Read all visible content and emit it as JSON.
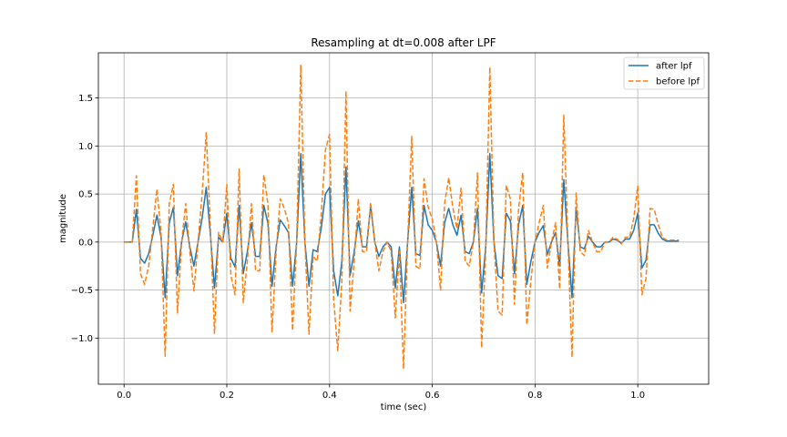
{
  "chart_data": {
    "type": "line",
    "title": "Resampling at dt=0.008 after LPF",
    "xlabel": "time (sec)",
    "ylabel": "magnitude",
    "xlim": [
      -0.05,
      1.138
    ],
    "ylim": [
      -1.48,
      1.97
    ],
    "xticks": [
      0.0,
      0.2,
      0.4,
      0.6,
      0.8,
      1.0
    ],
    "xtick_labels": [
      "0.0",
      "0.2",
      "0.4",
      "0.6",
      "0.8",
      "1.0"
    ],
    "yticks": [
      -1.0,
      -0.5,
      0.0,
      0.5,
      1.0,
      1.5
    ],
    "ytick_labels": [
      "−1.0",
      "−0.5",
      "0.0",
      "0.5",
      "1.0",
      "1.5"
    ],
    "grid": true,
    "legend_position": "top-right",
    "series": [
      {
        "name": "after lpf",
        "color": "#1f77b4",
        "dash": "solid",
        "x": [
          0.0,
          0.008,
          0.016,
          0.024,
          0.032,
          0.04,
          0.048,
          0.056,
          0.064,
          0.072,
          0.08,
          0.088,
          0.096,
          0.104,
          0.112,
          0.12,
          0.128,
          0.136,
          0.144,
          0.152,
          0.16,
          0.168,
          0.176,
          0.184,
          0.192,
          0.2,
          0.208,
          0.216,
          0.224,
          0.232,
          0.24,
          0.248,
          0.256,
          0.264,
          0.272,
          0.28,
          0.288,
          0.296,
          0.304,
          0.312,
          0.32,
          0.328,
          0.336,
          0.344,
          0.352,
          0.36,
          0.368,
          0.376,
          0.384,
          0.392,
          0.4,
          0.408,
          0.416,
          0.424,
          0.432,
          0.44,
          0.448,
          0.456,
          0.464,
          0.472,
          0.48,
          0.488,
          0.496,
          0.504,
          0.512,
          0.52,
          0.528,
          0.536,
          0.544,
          0.552,
          0.56,
          0.568,
          0.576,
          0.584,
          0.592,
          0.6,
          0.608,
          0.616,
          0.624,
          0.632,
          0.64,
          0.648,
          0.656,
          0.664,
          0.672,
          0.68,
          0.688,
          0.696,
          0.704,
          0.712,
          0.72,
          0.728,
          0.736,
          0.744,
          0.752,
          0.76,
          0.768,
          0.776,
          0.784,
          0.792,
          0.8,
          0.808,
          0.816,
          0.824,
          0.832,
          0.84,
          0.848,
          0.856,
          0.864,
          0.872,
          0.88,
          0.888,
          0.896,
          0.904,
          0.912,
          0.92,
          0.928,
          0.936,
          0.944,
          0.952,
          0.96,
          0.968,
          0.976,
          0.984,
          0.992,
          1.0,
          1.008,
          1.016,
          1.024,
          1.032,
          1.04,
          1.048,
          1.056,
          1.064,
          1.072,
          1.08
        ],
        "y": [
          0.0,
          0.0,
          0.0,
          0.34,
          -0.17,
          -0.22,
          -0.12,
          0.07,
          0.28,
          0.05,
          -0.58,
          0.2,
          0.36,
          -0.35,
          0.0,
          0.21,
          -0.05,
          -0.25,
          0.0,
          0.25,
          0.57,
          0.08,
          -0.48,
          0.05,
          0.0,
          0.3,
          -0.17,
          -0.26,
          0.38,
          -0.33,
          -0.1,
          0.2,
          -0.15,
          -0.15,
          0.38,
          0.2,
          -0.46,
          -0.05,
          0.23,
          0.17,
          0.1,
          -0.46,
          0.0,
          0.92,
          0.0,
          -0.46,
          -0.08,
          -0.1,
          0.15,
          0.5,
          0.57,
          -0.3,
          -0.56,
          -0.2,
          0.78,
          -0.35,
          -0.1,
          0.22,
          -0.05,
          -0.05,
          0.38,
          0.0,
          -0.15,
          -0.05,
          0.0,
          -0.05,
          -0.48,
          -0.05,
          -0.63,
          0.0,
          0.57,
          -0.12,
          -0.14,
          0.38,
          0.18,
          0.12,
          0.0,
          -0.25,
          0.2,
          0.35,
          0.18,
          0.07,
          0.28,
          -0.1,
          -0.12,
          0.0,
          0.35,
          -0.53,
          -0.05,
          0.92,
          0.0,
          -0.35,
          -0.38,
          0.3,
          0.22,
          -0.33,
          0.18,
          0.38,
          -0.44,
          -0.2,
          0.0,
          0.1,
          0.17,
          -0.13,
          0.0,
          0.1,
          -0.25,
          0.65,
          0.0,
          -0.58,
          0.35,
          -0.05,
          -0.07,
          0.06,
          0.0,
          -0.05,
          -0.05,
          0.0,
          0.0,
          0.03,
          0.02,
          -0.01,
          0.03,
          0.03,
          0.12,
          0.3,
          -0.27,
          -0.19,
          0.18,
          0.18,
          0.09,
          0.03,
          0.01,
          0.01,
          0.01,
          0.01
        ]
      },
      {
        "name": "before lpf",
        "color": "#ff7f0e",
        "dash": "dashed",
        "x": [
          0.0,
          0.008,
          0.016,
          0.024,
          0.032,
          0.04,
          0.048,
          0.056,
          0.064,
          0.072,
          0.08,
          0.088,
          0.096,
          0.104,
          0.112,
          0.12,
          0.128,
          0.136,
          0.144,
          0.152,
          0.16,
          0.168,
          0.176,
          0.184,
          0.192,
          0.2,
          0.208,
          0.216,
          0.224,
          0.232,
          0.24,
          0.248,
          0.256,
          0.264,
          0.272,
          0.28,
          0.288,
          0.296,
          0.304,
          0.312,
          0.32,
          0.328,
          0.336,
          0.344,
          0.352,
          0.36,
          0.368,
          0.376,
          0.384,
          0.392,
          0.4,
          0.408,
          0.416,
          0.424,
          0.432,
          0.44,
          0.448,
          0.456,
          0.464,
          0.472,
          0.48,
          0.488,
          0.496,
          0.504,
          0.512,
          0.52,
          0.528,
          0.536,
          0.544,
          0.552,
          0.56,
          0.568,
          0.576,
          0.584,
          0.592,
          0.6,
          0.608,
          0.616,
          0.624,
          0.632,
          0.64,
          0.648,
          0.656,
          0.664,
          0.672,
          0.68,
          0.688,
          0.696,
          0.704,
          0.712,
          0.72,
          0.728,
          0.736,
          0.744,
          0.752,
          0.76,
          0.768,
          0.776,
          0.784,
          0.792,
          0.8,
          0.808,
          0.816,
          0.824,
          0.832,
          0.84,
          0.848,
          0.856,
          0.864,
          0.872,
          0.88,
          0.888,
          0.896,
          0.904,
          0.912,
          0.92,
          0.928,
          0.936,
          0.944,
          0.952,
          0.96,
          0.968,
          0.976,
          0.984,
          0.992,
          1.0,
          1.008,
          1.016,
          1.024,
          1.032,
          1.04,
          1.048,
          1.056,
          1.064,
          1.072,
          1.08
        ],
        "y": [
          0.0,
          0.0,
          0.0,
          0.69,
          -0.33,
          -0.44,
          -0.25,
          0.15,
          0.55,
          0.1,
          -1.19,
          0.4,
          0.6,
          -0.74,
          0.0,
          0.4,
          -0.1,
          -0.51,
          0.0,
          0.5,
          1.14,
          0.16,
          -0.95,
          0.1,
          0.0,
          0.6,
          -0.35,
          -0.55,
          0.76,
          -0.63,
          -0.2,
          0.4,
          -0.3,
          -0.3,
          0.7,
          0.4,
          -0.94,
          -0.1,
          0.45,
          0.35,
          0.2,
          -0.92,
          0.0,
          1.84,
          0.0,
          -0.96,
          -0.15,
          -0.2,
          0.3,
          0.96,
          1.12,
          -0.6,
          -1.13,
          -0.4,
          1.57,
          -0.72,
          -0.2,
          0.45,
          -0.1,
          -0.1,
          0.41,
          0.0,
          -0.3,
          -0.1,
          0.0,
          -0.1,
          -0.79,
          -0.1,
          -1.32,
          0.0,
          1.1,
          -0.25,
          -0.28,
          0.66,
          0.36,
          0.24,
          0.0,
          -0.5,
          0.4,
          0.67,
          0.36,
          0.14,
          0.56,
          -0.2,
          -0.25,
          0.0,
          0.72,
          -1.1,
          -0.1,
          1.82,
          0.0,
          -0.72,
          -0.76,
          0.59,
          0.45,
          -0.65,
          0.35,
          0.72,
          -0.86,
          -0.4,
          0.0,
          0.2,
          0.38,
          -0.27,
          0.0,
          0.2,
          -0.49,
          1.32,
          0.0,
          -1.2,
          0.51,
          -0.1,
          -0.14,
          0.12,
          0.0,
          -0.1,
          -0.1,
          0.0,
          0.0,
          0.05,
          0.03,
          -0.02,
          0.05,
          0.05,
          0.24,
          0.58,
          -0.55,
          -0.38,
          0.35,
          0.34,
          0.18,
          0.05,
          0.02,
          0.02,
          0.02,
          0.02
        ]
      }
    ]
  }
}
